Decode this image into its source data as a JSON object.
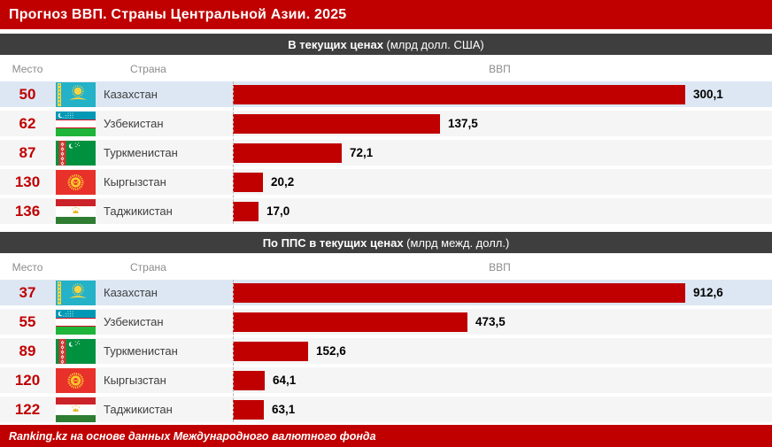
{
  "page_title": "Прогноз ВВП. Страны Центральной Азии. 2025",
  "footer": {
    "source": "Ranking.kz на основе данных Международного валютного фонда"
  },
  "columns": {
    "rank": "Место",
    "country": "Страна",
    "gdp": "ВВП"
  },
  "colors": {
    "accent_red": "#c00000",
    "section_header_bg": "#3e3e3e",
    "row_bg": "#f5f5f5",
    "row_highlight_bg": "#dce7f3",
    "value_text": "#000000",
    "column_header_text": "#8c8c8c"
  },
  "chart_data": [
    {
      "type": "bar",
      "orientation": "horizontal",
      "title": "В текущих ценах (млрд долл. США)",
      "title_bold": "В текущих ценах",
      "title_note": " (млрд долл. США)",
      "unit": "млрд долл. США",
      "bar_color": "#c00000",
      "categories": [
        "Казахстан",
        "Узбекистан",
        "Туркменистан",
        "Кыргызстан",
        "Таджикистан"
      ],
      "values": [
        300.1,
        137.5,
        72.1,
        20.2,
        17.0
      ],
      "max_value": 300.1,
      "rows": [
        {
          "rank": "50",
          "country": "Казахстан",
          "flag": "kazakhstan",
          "value": 300.1,
          "label": "300,1",
          "highlight": true
        },
        {
          "rank": "62",
          "country": "Узбекистан",
          "flag": "uzbekistan",
          "value": 137.5,
          "label": "137,5",
          "highlight": false
        },
        {
          "rank": "87",
          "country": "Туркменистан",
          "flag": "turkmenistan",
          "value": 72.1,
          "label": "72,1",
          "highlight": false
        },
        {
          "rank": "130",
          "country": "Кыргызстан",
          "flag": "kyrgyzstan",
          "value": 20.2,
          "label": "20,2",
          "highlight": false
        },
        {
          "rank": "136",
          "country": "Таджикистан",
          "flag": "tajikistan",
          "value": 17.0,
          "label": "17,0",
          "highlight": false
        }
      ]
    },
    {
      "type": "bar",
      "orientation": "horizontal",
      "title": "По ППС в текущих ценах (млрд межд. долл.)",
      "title_bold": "По ППС в текущих ценах",
      "title_note": " (млрд межд. долл.)",
      "unit": "млрд межд. долл.",
      "bar_color": "#c00000",
      "categories": [
        "Казахстан",
        "Узбекистан",
        "Туркменистан",
        "Кыргызстан",
        "Таджикистан"
      ],
      "values": [
        912.6,
        473.5,
        152.6,
        64.1,
        63.1
      ],
      "max_value": 912.6,
      "rows": [
        {
          "rank": "37",
          "country": "Казахстан",
          "flag": "kazakhstan",
          "value": 912.6,
          "label": "912,6",
          "highlight": true
        },
        {
          "rank": "55",
          "country": "Узбекистан",
          "flag": "uzbekistan",
          "value": 473.5,
          "label": "473,5",
          "highlight": false
        },
        {
          "rank": "89",
          "country": "Туркменистан",
          "flag": "turkmenistan",
          "value": 152.6,
          "label": "152,6",
          "highlight": false
        },
        {
          "rank": "120",
          "country": "Кыргызстан",
          "flag": "kyrgyzstan",
          "value": 64.1,
          "label": "64,1",
          "highlight": false
        },
        {
          "rank": "122",
          "country": "Таджикистан",
          "flag": "tajikistan",
          "value": 63.1,
          "label": "63,1",
          "highlight": false
        }
      ]
    }
  ]
}
